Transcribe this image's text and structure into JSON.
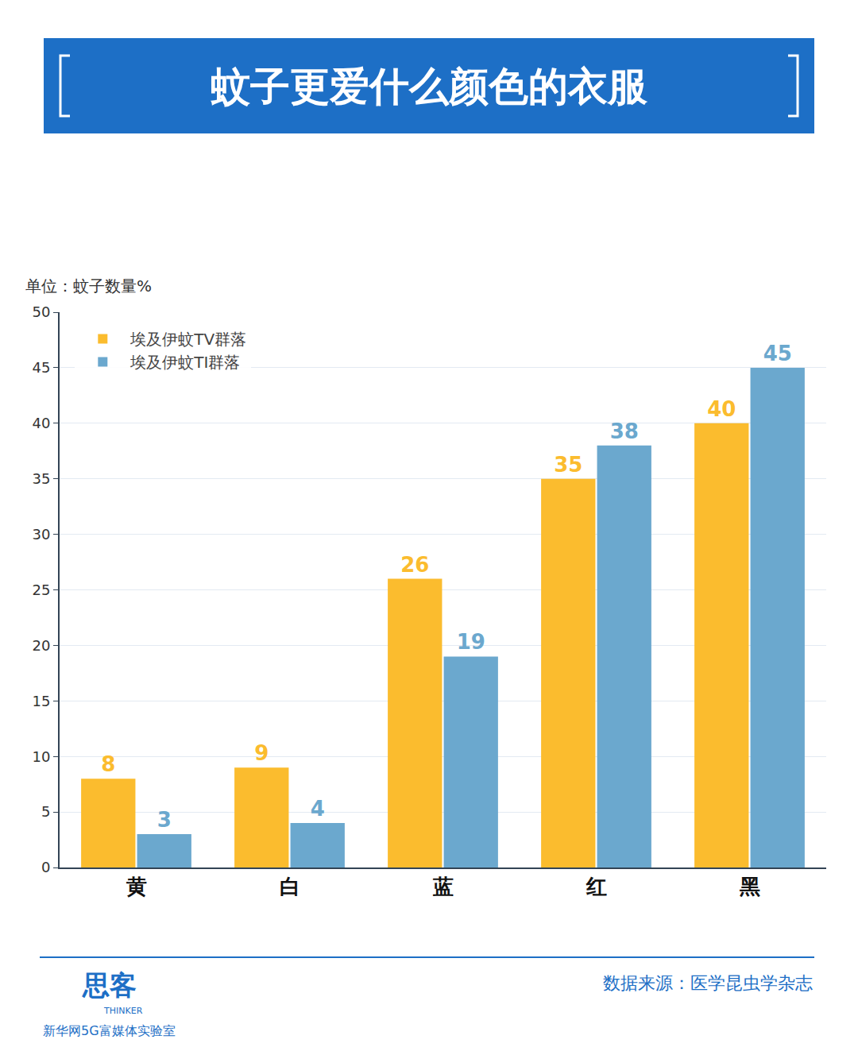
{
  "chart_data": {
    "type": "bar",
    "title": "蚊子更爱什么颜色的衣服",
    "y_label": "单位：蚊子数量%",
    "categories": [
      "黄",
      "白",
      "蓝",
      "红",
      "黑"
    ],
    "series": [
      {
        "name": "埃及伊蚊TV群落",
        "color": "#FBBC2E",
        "values": [
          8,
          9,
          26,
          35,
          40
        ]
      },
      {
        "name": "埃及伊蚊TI群落",
        "color": "#6BA8CE",
        "values": [
          3,
          4,
          19,
          38,
          45
        ]
      }
    ],
    "ylim": [
      0,
      50
    ],
    "yticks": [
      0,
      5,
      10,
      15,
      20,
      25,
      30,
      35,
      40,
      45,
      50
    ],
    "grid": true,
    "legend": "top-left",
    "data_labels": true,
    "source": "数据来源：医学昆虫学杂志",
    "logo": [
      "思客",
      "THINKER",
      "新华网5G富媒体实验室"
    ]
  }
}
